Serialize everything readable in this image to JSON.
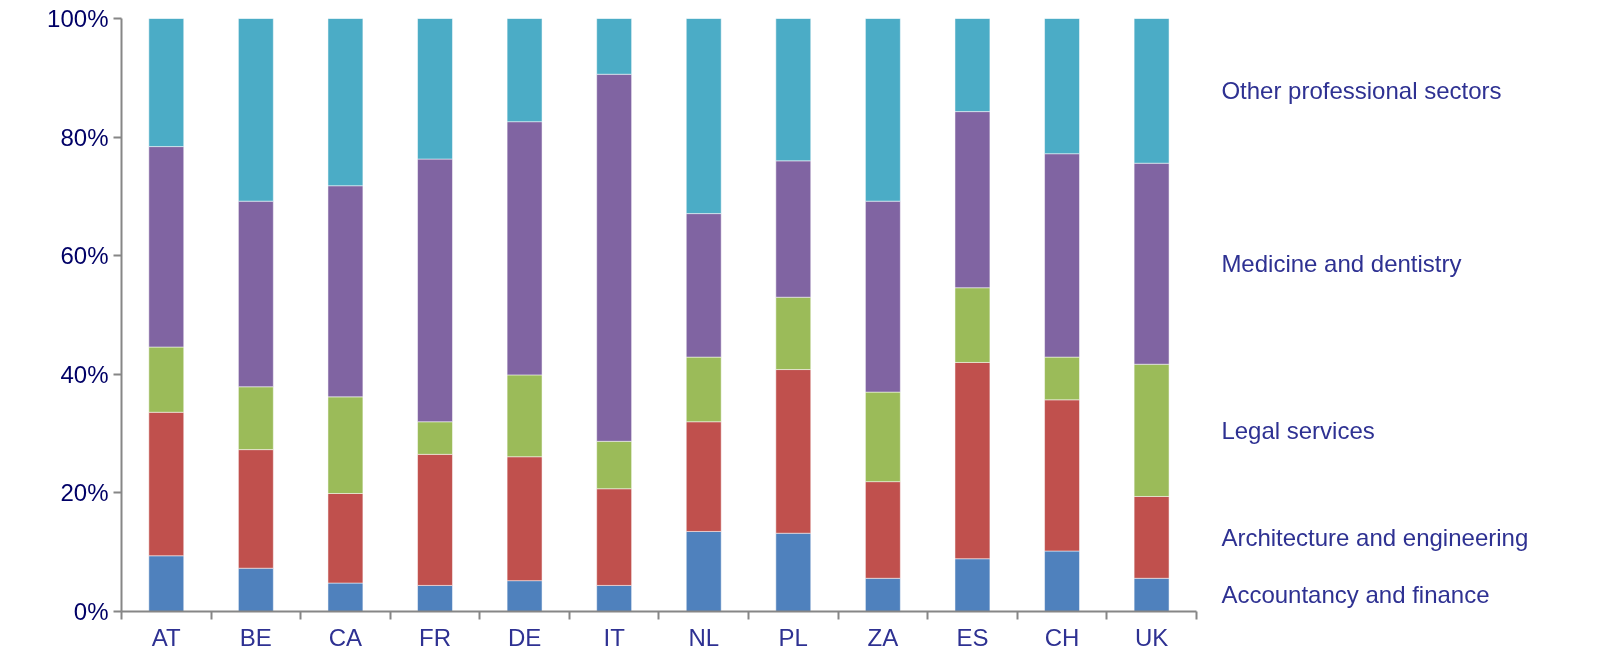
{
  "chart_data": {
    "type": "bar",
    "stacked": true,
    "categories": [
      "AT",
      "BE",
      "CA",
      "FR",
      "DE",
      "IT",
      "NL",
      "PL",
      "ZA",
      "ES",
      "CH",
      "UK"
    ],
    "series": [
      {
        "name": "Accountancy and finance",
        "color": "#4f81bd",
        "values": [
          9.4,
          7.3,
          4.8,
          4.4,
          5.2,
          4.4,
          13.5,
          13.2,
          5.6,
          8.9,
          10.2,
          5.6
        ]
      },
      {
        "name": "Architecture and engineering",
        "color": "#c0504d",
        "values": [
          24.2,
          20.0,
          15.1,
          22.1,
          20.9,
          16.3,
          18.5,
          27.6,
          16.3,
          33.1,
          25.5,
          13.8
        ]
      },
      {
        "name": "Legal services",
        "color": "#9bbb59",
        "values": [
          11.0,
          10.6,
          16.3,
          5.5,
          13.8,
          8.0,
          10.9,
          12.2,
          15.1,
          12.6,
          7.2,
          22.3
        ]
      },
      {
        "name": "Medicine and dentistry",
        "color": "#8064a2",
        "values": [
          33.8,
          31.3,
          35.6,
          44.3,
          42.7,
          61.9,
          24.2,
          23.0,
          32.2,
          29.7,
          34.3,
          33.9
        ]
      },
      {
        "name": "Other professional sectors",
        "color": "#4bacc6",
        "values": [
          21.6,
          30.8,
          28.2,
          23.7,
          17.4,
          9.4,
          32.9,
          24.0,
          30.8,
          15.7,
          22.8,
          24.4
        ]
      }
    ],
    "ylim": [
      0,
      100
    ],
    "yticks": [
      {
        "value": 0,
        "label": "0%"
      },
      {
        "value": 20,
        "label": "20%"
      },
      {
        "value": 40,
        "label": "40%"
      },
      {
        "value": 60,
        "label": "60%"
      },
      {
        "value": 80,
        "label": "80%"
      },
      {
        "value": 100,
        "label": "100%"
      }
    ],
    "grid": false
  }
}
